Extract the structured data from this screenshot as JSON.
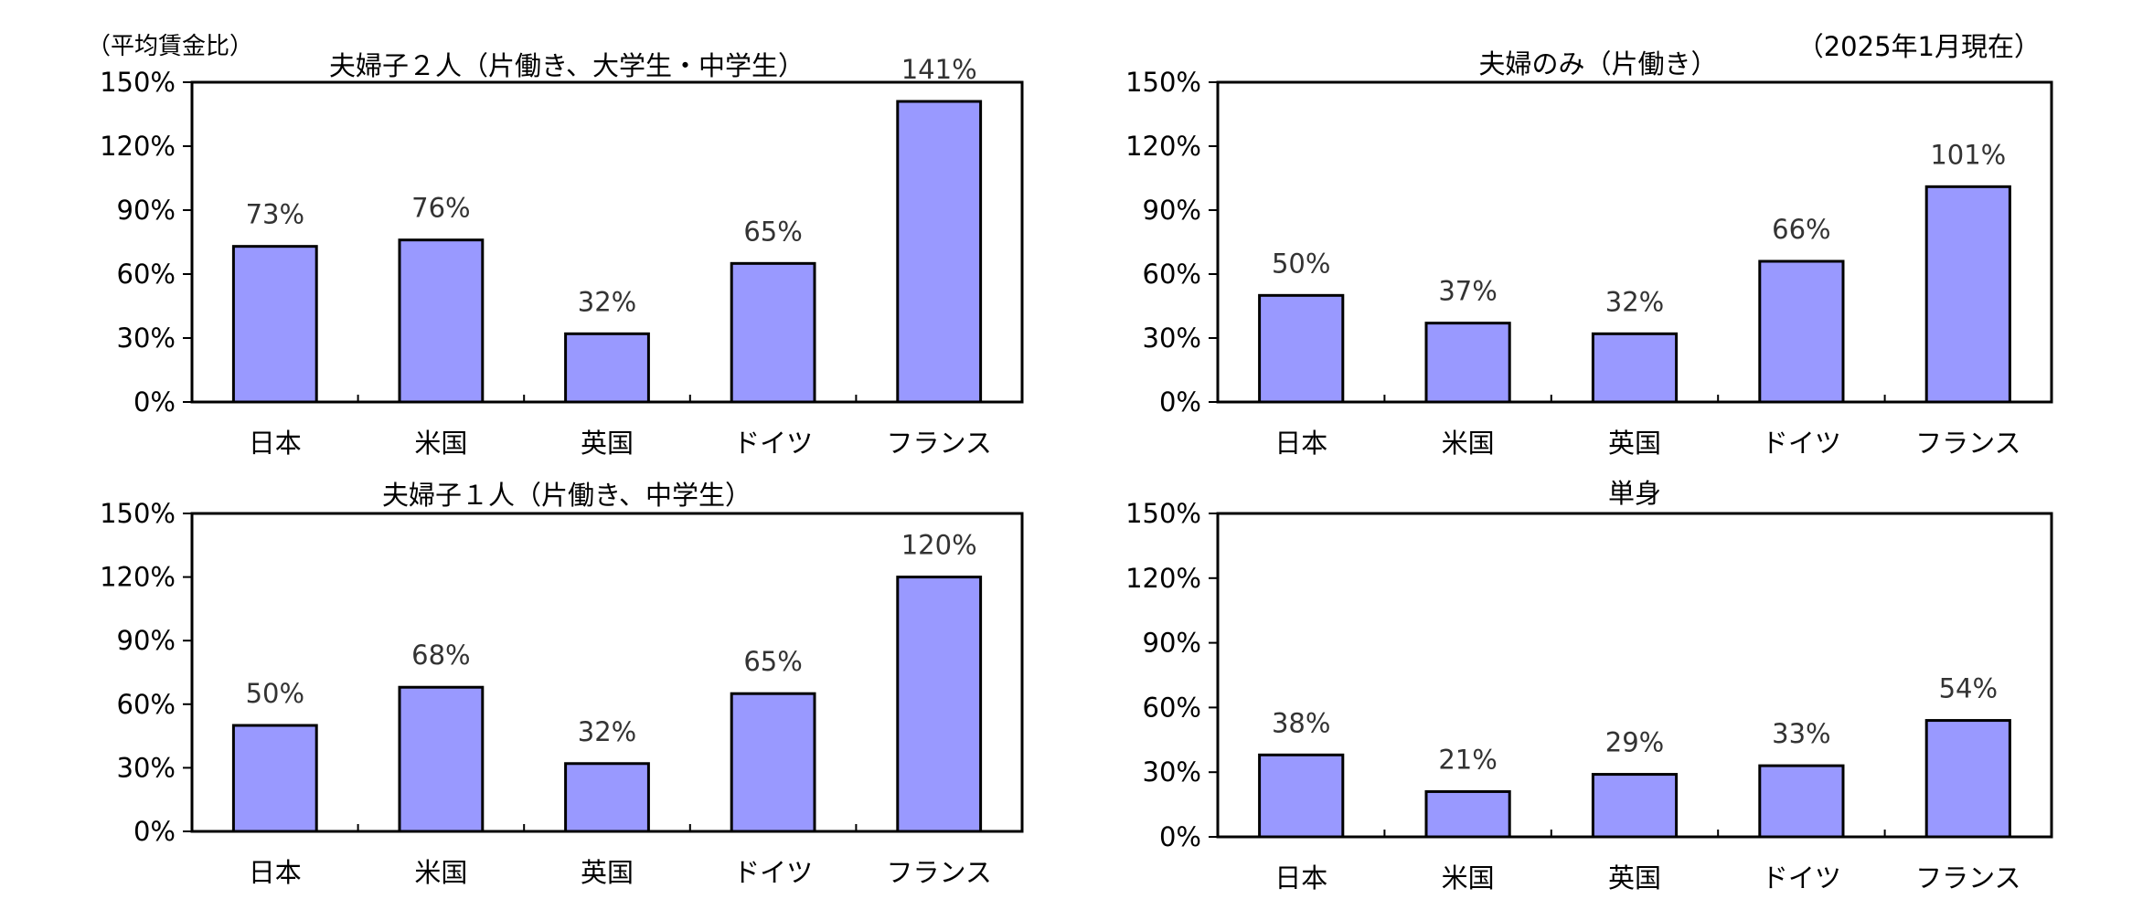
{
  "y_axis_note": "（平均賃金比）",
  "as_of": "（2025年1月現在）",
  "colors": {
    "bar": "#9999ff",
    "bar_stroke": "#000000",
    "label": "#333333"
  },
  "chart_data": [
    {
      "type": "bar",
      "title": "夫婦子２人（片働き、大学生・中学生）",
      "categories": [
        "日本",
        "米国",
        "英国",
        "ドイツ",
        "フランス"
      ],
      "values": [
        73,
        76,
        32,
        65,
        141
      ],
      "data_labels": [
        "73%",
        "76%",
        "32%",
        "65%",
        "141%"
      ],
      "yticks": [
        "0%",
        "30%",
        "60%",
        "90%",
        "120%",
        "150%"
      ],
      "ylim": [
        0,
        150
      ],
      "grid": false
    },
    {
      "type": "bar",
      "title": "夫婦のみ（片働き）",
      "categories": [
        "日本",
        "米国",
        "英国",
        "ドイツ",
        "フランス"
      ],
      "values": [
        50,
        37,
        32,
        66,
        101
      ],
      "data_labels": [
        "50%",
        "37%",
        "32%",
        "66%",
        "101%"
      ],
      "yticks": [
        "0%",
        "30%",
        "60%",
        "90%",
        "120%",
        "150%"
      ],
      "ylim": [
        0,
        150
      ],
      "grid": false
    },
    {
      "type": "bar",
      "title": "夫婦子１人（片働き、中学生）",
      "categories": [
        "日本",
        "米国",
        "英国",
        "ドイツ",
        "フランス"
      ],
      "values": [
        50,
        68,
        32,
        65,
        120
      ],
      "data_labels": [
        "50%",
        "68%",
        "32%",
        "65%",
        "120%"
      ],
      "yticks": [
        "0%",
        "30%",
        "60%",
        "90%",
        "120%",
        "150%"
      ],
      "ylim": [
        0,
        150
      ],
      "grid": false
    },
    {
      "type": "bar",
      "title": "単身",
      "categories": [
        "日本",
        "米国",
        "英国",
        "ドイツ",
        "フランス"
      ],
      "values": [
        38,
        21,
        29,
        33,
        54
      ],
      "data_labels": [
        "38%",
        "21%",
        "29%",
        "33%",
        "54%"
      ],
      "yticks": [
        "0%",
        "30%",
        "60%",
        "90%",
        "120%",
        "150%"
      ],
      "ylim": [
        0,
        150
      ],
      "grid": false
    }
  ]
}
